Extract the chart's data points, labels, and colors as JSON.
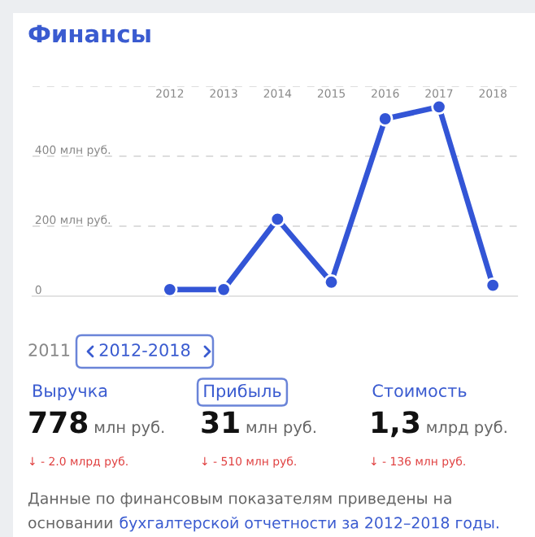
{
  "chart_data": {
    "type": "line",
    "title": "Финансы",
    "categories": [
      "2012",
      "2013",
      "2014",
      "2015",
      "2016",
      "2017",
      "2018"
    ],
    "values": [
      19,
      19,
      220,
      40,
      507,
      541,
      31
    ],
    "color": "#3355d6",
    "ylim": [
      0,
      600
    ],
    "yticks": [
      0,
      {
        "value": 200,
        "label": "200 млн руб."
      },
      {
        "value": 400,
        "label": "400 млн руб."
      },
      {
        "value": 600,
        "label": null
      }
    ],
    "grid": "y",
    "marker": "circle",
    "line_style": "solid",
    "annotations": [
      "2011",
      "2012-2018",
      "Выручка",
      "Прибыль",
      "Стоимость",
      "778",
      "млн руб.",
      "31",
      "млн руб.",
      "1,3",
      "млрд руб.",
      "↓ - 2.0 млрд руб.",
      "↓ - 510 млн руб.",
      "↓ - 136 млн руб.",
      "Данные по финансовым показателям приведены на",
      "основании",
      "бухгалтерской отчетности за 2012–2018 годы."
    ]
  }
}
